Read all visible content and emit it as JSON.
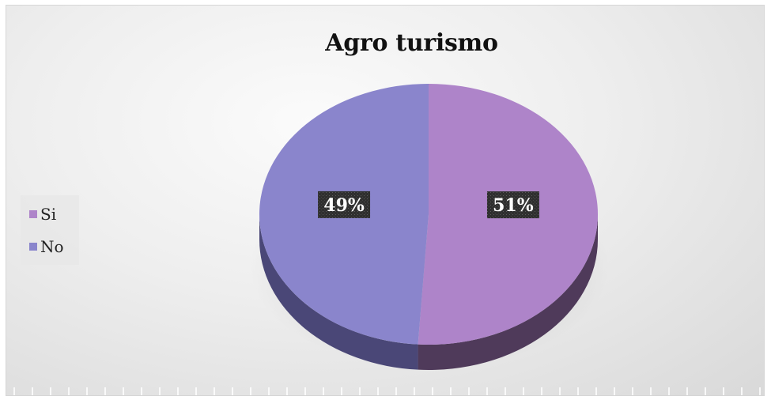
{
  "chart_data": {
    "type": "pie",
    "title": "Agro turismo",
    "categories": [
      "Si",
      "No"
    ],
    "values": [
      51,
      49
    ],
    "labels": [
      "51%",
      "49%"
    ],
    "colors": [
      "#ae84c9",
      "#8a85cc"
    ],
    "side_colors": [
      "#4f3a5a",
      "#4a4777"
    ],
    "legend_position": "left",
    "style": "3d"
  },
  "legend": {
    "items": [
      {
        "label": "Si",
        "color": "#ae84c9"
      },
      {
        "label": "No",
        "color": "#8a85cc"
      }
    ]
  }
}
